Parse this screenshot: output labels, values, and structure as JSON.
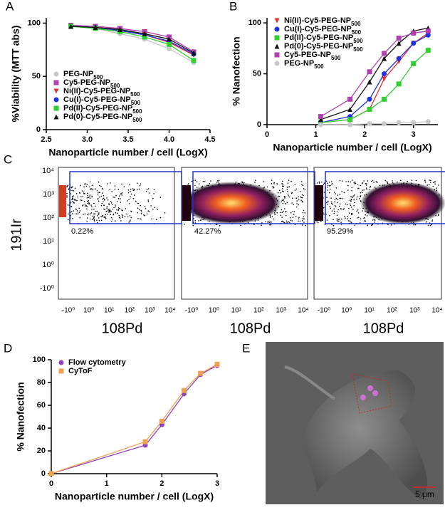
{
  "chart_data": [
    {
      "panel": "A",
      "type": "line",
      "xlabel": "Nanoparticle number / cell (LogX)",
      "ylabel": "%Viability (MTT abs)",
      "x": [
        2.8,
        3.1,
        3.4,
        3.7,
        4.0,
        4.3
      ],
      "xlim": [
        2.5,
        4.5
      ],
      "xticks": [
        2.5,
        {
          "value": 3.0,
          "label": "3.0"
        },
        3.5,
        {
          "value": 4.0,
          "label": "4.0"
        },
        4.5
      ],
      "ylim": [
        0,
        105
      ],
      "yticks": [
        0,
        50,
        100
      ],
      "legend": "lower left",
      "series": [
        {
          "name": "PEG-NP500",
          "color": "#c8c8c8",
          "marker": "circle",
          "values": [
            97,
            95,
            90,
            85,
            76,
            63
          ]
        },
        {
          "name": "Cy5-PEG-NP500",
          "color": "#b040b0",
          "marker": "square",
          "values": [
            98,
            97,
            95,
            92,
            87,
            73
          ]
        },
        {
          "name": "Ni(II)-Cy5-PEG-NP500",
          "color": "#e03030",
          "marker": "down",
          "values": [
            97,
            96,
            93,
            89,
            82,
            70
          ]
        },
        {
          "name": "Cu(I)-Cy5-PEG-NP500",
          "color": "#2030e0",
          "marker": "circle",
          "values": [
            97,
            96,
            93,
            89,
            83,
            71
          ]
        },
        {
          "name": "Pd(II)-Cy5-PEG-NP500",
          "color": "#30d030",
          "marker": "square",
          "values": [
            97,
            95,
            92,
            87,
            80,
            65
          ]
        },
        {
          "name": "Pd(0)-Cy5-PEG-NP500",
          "color": "#111111",
          "marker": "up",
          "values": [
            97,
            96,
            94,
            90,
            85,
            72
          ]
        }
      ]
    },
    {
      "panel": "B",
      "type": "line",
      "xlabel": "Nanoparticle number / cell (LogX)",
      "ylabel": "% Nanofection",
      "x": [
        1.1,
        1.7,
        2.1,
        2.4,
        2.7,
        3.0,
        3.3
      ],
      "xlim": [
        0,
        3.5
      ],
      "xticks": [
        0,
        1,
        2,
        3
      ],
      "ylim": [
        0,
        105
      ],
      "yticks": [
        0,
        50,
        100
      ],
      "legend": "upper left",
      "series": [
        {
          "name": "Ni(II)-Cy5-PEG-NP500",
          "color": "#e03030",
          "marker": "down",
          "values": [
            2,
            5,
            15,
            45,
            62,
            80,
            90
          ]
        },
        {
          "name": "Cu(I)-Cy5-PEG-NP500",
          "color": "#2030e0",
          "marker": "circle",
          "values": [
            2,
            8,
            25,
            50,
            65,
            80,
            88
          ]
        },
        {
          "name": "Pd(II)-Cy5-PEG-NP500",
          "color": "#30d030",
          "marker": "square",
          "values": [
            2,
            5,
            15,
            25,
            40,
            60,
            73
          ]
        },
        {
          "name": "Pd(0)-Cy5-PEG-NP500",
          "color": "#111111",
          "marker": "up",
          "values": [
            5,
            15,
            42,
            65,
            80,
            92,
            95
          ]
        },
        {
          "name": "Cy5-PEG-NP500",
          "color": "#b040b0",
          "marker": "square",
          "values": [
            8,
            25,
            52,
            70,
            85,
            90,
            92
          ]
        },
        {
          "name": "PEG-NP500",
          "color": "#c8c8c8",
          "marker": "circle",
          "values": [
            0,
            0,
            1,
            1,
            2,
            2,
            3
          ]
        }
      ]
    },
    {
      "panel": "C",
      "type": "density",
      "xlabel": "108Pd",
      "ylabel": "191Ir",
      "ytick_labels": [
        "10⁴",
        "10³",
        "10²",
        "10¹",
        "10⁰",
        "-10⁰"
      ],
      "xtick_labels": [
        "-10⁰",
        "10⁰",
        "10¹",
        "10²",
        "10³",
        "10⁴"
      ],
      "values": [
        0.22,
        42.27,
        95.29
      ],
      "value_labels": [
        "0.22%",
        "42.27%",
        "95.29%"
      ]
    },
    {
      "panel": "D",
      "type": "line",
      "xlabel": "Nanoparticle number / cell (LogX)",
      "ylabel": "% Nanofection",
      "x": [
        0,
        1.7,
        2.0,
        2.4,
        2.7,
        3.0
      ],
      "xlim": [
        0,
        3
      ],
      "xticks": [
        0,
        1,
        2,
        3
      ],
      "ylim": [
        0,
        100
      ],
      "yticks": [
        0,
        20,
        40,
        60,
        80,
        100
      ],
      "legend": "upper left",
      "series": [
        {
          "name": "Flow cytometry",
          "color": "#9040c0",
          "marker": "circle",
          "values": [
            0,
            25,
            43,
            70,
            87,
            95
          ]
        },
        {
          "name": "CyToF",
          "color": "#f0a050",
          "marker": "square",
          "values": [
            0,
            28,
            46,
            73,
            88,
            96
          ]
        }
      ]
    },
    {
      "panel": "E",
      "type": "image",
      "scale_label": "5 μm"
    }
  ]
}
